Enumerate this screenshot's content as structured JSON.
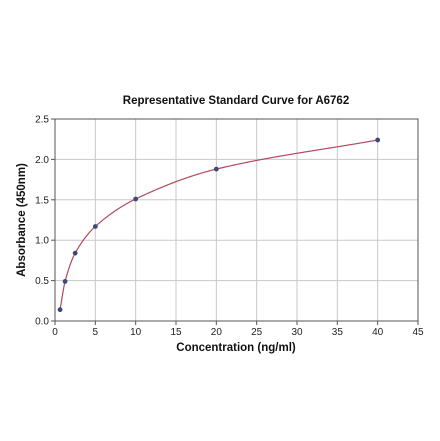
{
  "chart_data": {
    "type": "scatter",
    "title": "Representative Standard Curve for A6762",
    "xlabel": "Concentration (ng/ml)",
    "ylabel": "Absorbance (450nm)",
    "xlim": [
      0,
      45
    ],
    "ylim": [
      0,
      2.5
    ],
    "xticks": [
      "0",
      "5",
      "10",
      "15",
      "20",
      "25",
      "30",
      "35",
      "40",
      "45"
    ],
    "yticks": [
      "0.0",
      "0.5",
      "1.0",
      "1.5",
      "2.0",
      "2.5"
    ],
    "grid": true,
    "legend": "none",
    "series": [
      {
        "x": [
          0.625,
          1.25,
          2.5,
          5,
          10,
          20,
          40
        ],
        "y": [
          0.14,
          0.49,
          0.84,
          1.17,
          1.51,
          1.88,
          2.24
        ],
        "marker_color": "#3b4a78"
      }
    ],
    "curve_color": "#b5485c",
    "grid_color": "#c8c8c8"
  }
}
